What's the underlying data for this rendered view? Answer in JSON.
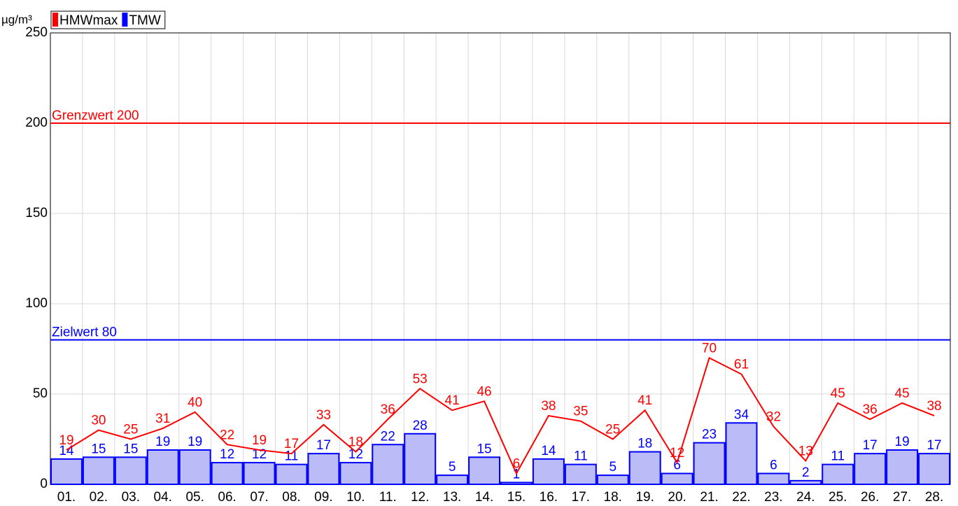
{
  "chart_data": {
    "type": "bar_line",
    "unit_label": "µg/m³",
    "categories": [
      "01.",
      "02.",
      "03.",
      "04.",
      "05.",
      "06.",
      "07.",
      "08.",
      "09.",
      "10.",
      "11.",
      "12.",
      "13.",
      "14.",
      "15.",
      "16.",
      "17.",
      "18.",
      "19.",
      "20.",
      "21.",
      "22.",
      "23.",
      "24.",
      "25.",
      "26.",
      "27.",
      "28."
    ],
    "series": [
      {
        "name": "HMWmax",
        "type": "line",
        "color": "#ff0000",
        "values": [
          19,
          30,
          25,
          31,
          40,
          22,
          19,
          17,
          33,
          18,
          36,
          53,
          41,
          46,
          6,
          38,
          35,
          25,
          41,
          12,
          70,
          61,
          32,
          13,
          45,
          36,
          45,
          38
        ]
      },
      {
        "name": "TMW",
        "type": "bar",
        "color": "#0000ff",
        "fill": "#bbbbf7",
        "values": [
          14,
          15,
          15,
          19,
          19,
          12,
          12,
          11,
          17,
          12,
          22,
          28,
          5,
          15,
          1,
          14,
          11,
          5,
          18,
          6,
          23,
          34,
          6,
          2,
          11,
          17,
          19,
          17
        ]
      }
    ],
    "reference_lines": [
      {
        "label": "Grenzwert 200",
        "value": 200,
        "color": "#ff0000"
      },
      {
        "label": "Zielwert 80",
        "value": 80,
        "color": "#0000ff"
      }
    ],
    "ylim": [
      0,
      250
    ],
    "yticks": [
      0,
      50,
      100,
      150,
      200,
      250
    ],
    "grid": true
  }
}
